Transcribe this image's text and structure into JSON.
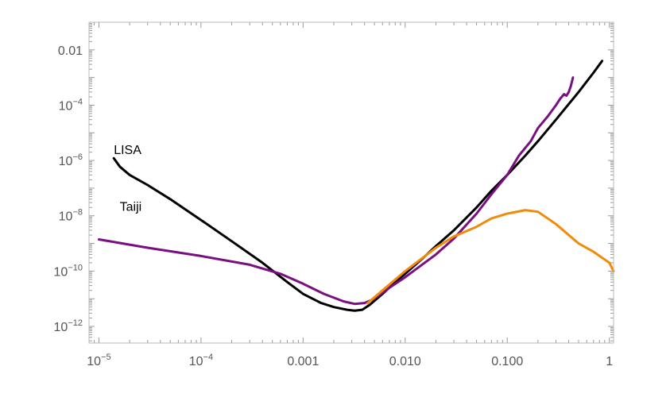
{
  "chart_data": {
    "type": "line",
    "title": "",
    "xlabel": "",
    "ylabel": "",
    "xscale": "log",
    "yscale": "log",
    "xlim": [
      8e-06,
      1.1
    ],
    "ylim": [
      2.5e-13,
      0.1
    ],
    "grid": false,
    "legend": "none",
    "x_ticks": [
      {
        "value": 1e-05,
        "base": "10",
        "exp": "−5"
      },
      {
        "value": 0.0001,
        "base": "10",
        "exp": "−4"
      },
      {
        "value": 0.001,
        "text": "0.001"
      },
      {
        "value": 0.01,
        "text": "0.010"
      },
      {
        "value": 0.1,
        "text": "0.100"
      },
      {
        "value": 1,
        "text": "1"
      }
    ],
    "y_ticks": [
      {
        "value": 0.01,
        "text": "0.01"
      },
      {
        "value": 0.0001,
        "base": "10",
        "exp": "−4"
      },
      {
        "value": 1e-06,
        "base": "10",
        "exp": "−6"
      },
      {
        "value": 1e-08,
        "base": "10",
        "exp": "−8"
      },
      {
        "value": 1e-10,
        "base": "10",
        "exp": "−10"
      },
      {
        "value": 1e-12,
        "base": "10",
        "exp": "−12"
      }
    ],
    "series": [
      {
        "key": "lisa",
        "color": "#000000",
        "x": [
          1.4e-05,
          1.6e-05,
          2e-05,
          3e-05,
          5e-05,
          0.0001,
          0.0002,
          0.0004,
          0.0007,
          0.001,
          0.0015,
          0.002,
          0.0027,
          0.0032,
          0.0038,
          0.0045,
          0.006,
          0.008,
          0.01,
          0.015,
          0.02,
          0.03,
          0.05,
          0.07,
          0.1,
          0.15,
          0.2,
          0.3,
          0.5,
          0.7,
          0.85
        ],
        "y": [
          1.2e-06,
          6e-07,
          3e-07,
          1.3e-07,
          4e-08,
          7e-09,
          1.2e-09,
          2e-10,
          4e-11,
          1.5e-11,
          7e-12,
          5e-12,
          4e-12,
          3.7e-12,
          4e-12,
          6e-12,
          1.5e-11,
          4e-11,
          8e-11,
          3e-10,
          8e-10,
          3e-09,
          2e-08,
          8e-08,
          3e-07,
          1.5e-06,
          5e-06,
          3e-05,
          0.0003,
          0.0015,
          0.004
        ]
      },
      {
        "key": "taiji",
        "color": "#7a0f82",
        "x": [
          1e-05,
          3e-05,
          0.0001,
          0.0003,
          0.0006,
          0.001,
          0.0016,
          0.0025,
          0.0032,
          0.004,
          0.005,
          0.007,
          0.01,
          0.02,
          0.03,
          0.05,
          0.07,
          0.1,
          0.13,
          0.17,
          0.2,
          0.25,
          0.3,
          0.33,
          0.36,
          0.38,
          0.4,
          0.42,
          0.44
        ],
        "y": [
          1.4e-09,
          7e-10,
          3.5e-10,
          1.7e-10,
          8e-11,
          3.5e-11,
          1.5e-11,
          8e-12,
          6.5e-12,
          7e-12,
          1e-11,
          2.5e-11,
          6e-11,
          4e-10,
          1.5e-09,
          1.2e-08,
          6e-08,
          3e-07,
          1.5e-06,
          5e-06,
          1.5e-05,
          4e-05,
          0.0001,
          0.00017,
          0.00025,
          0.00022,
          0.0003,
          0.0005,
          0.001
        ]
      },
      {
        "key": "orange",
        "color": "#f28a0a",
        "x": [
          0.0043,
          0.006,
          0.01,
          0.02,
          0.03,
          0.05,
          0.07,
          0.1,
          0.15,
          0.2,
          0.3,
          0.5,
          0.7,
          1.0,
          1.1
        ],
        "y": [
          7e-12,
          2e-11,
          1e-10,
          7e-10,
          1.8e-09,
          4e-09,
          8e-09,
          1.2e-08,
          1.6e-08,
          1.4e-08,
          5e-09,
          1e-09,
          5e-10,
          2e-10,
          1e-10
        ]
      }
    ],
    "annotations": [
      {
        "text": "LISA",
        "x": 1.4e-05,
        "y": 1.7e-06
      },
      {
        "text": "Taiji",
        "x": 1.6e-05,
        "y": 1.5e-08
      }
    ]
  }
}
